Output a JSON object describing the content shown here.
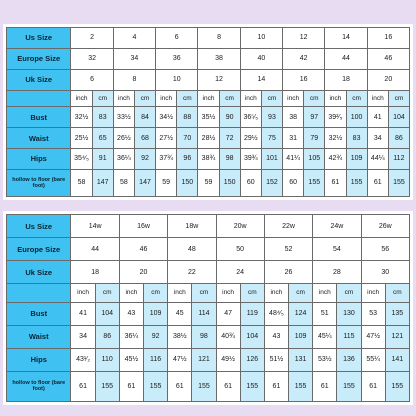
{
  "table_top": {
    "rows": [
      {
        "label": "Us Size",
        "cells": [
          "2",
          "4",
          "6",
          "8",
          "10",
          "12",
          "14",
          "16"
        ]
      },
      {
        "label": "Europe Size",
        "cells": [
          "32",
          "34",
          "36",
          "38",
          "40",
          "42",
          "44",
          "46"
        ]
      },
      {
        "label": "Uk Size",
        "cells": [
          "6",
          "8",
          "10",
          "12",
          "14",
          "16",
          "18",
          "20"
        ]
      }
    ],
    "units": [
      "inch",
      "cm"
    ],
    "measurements": [
      {
        "label": "Bust",
        "values": [
          [
            "32½",
            "83"
          ],
          [
            "33½",
            "84"
          ],
          [
            "34½",
            "88"
          ],
          [
            "35½",
            "90"
          ],
          [
            "36⁵⁄₅",
            "93"
          ],
          [
            "38",
            "97"
          ],
          [
            "39²⁄₅",
            "100"
          ],
          [
            "41",
            "104"
          ]
        ]
      },
      {
        "label": "Waist",
        "values": [
          [
            "25½",
            "65"
          ],
          [
            "26½",
            "68"
          ],
          [
            "27½",
            "70"
          ],
          [
            "28½",
            "72"
          ],
          [
            "29½",
            "75"
          ],
          [
            "31",
            "79"
          ],
          [
            "32½",
            "83"
          ],
          [
            "34",
            "86"
          ]
        ]
      },
      {
        "label": "Hips",
        "values": [
          [
            "35⁴⁄₅",
            "91"
          ],
          [
            "36¼",
            "92"
          ],
          [
            "37¾",
            "96"
          ],
          [
            "38¾",
            "98"
          ],
          [
            "39¾",
            "101"
          ],
          [
            "41¼",
            "105"
          ],
          [
            "42¾",
            "109"
          ],
          [
            "44¼",
            "112"
          ]
        ]
      },
      {
        "label": "hollow to floor (bare foot)",
        "values": [
          [
            "58",
            "147"
          ],
          [
            "58",
            "147"
          ],
          [
            "59",
            "150"
          ],
          [
            "59",
            "150"
          ],
          [
            "60",
            "152"
          ],
          [
            "60",
            "155"
          ],
          [
            "61",
            "155"
          ],
          [
            "61",
            "155"
          ]
        ]
      }
    ]
  },
  "table_bottom": {
    "rows": [
      {
        "label": "Us Size",
        "cells": [
          "14w",
          "16w",
          "18w",
          "20w",
          "22w",
          "24w",
          "26w"
        ]
      },
      {
        "label": "Europe Size",
        "cells": [
          "44",
          "46",
          "48",
          "50",
          "52",
          "54",
          "56"
        ]
      },
      {
        "label": "Uk Size",
        "cells": [
          "18",
          "20",
          "22",
          "24",
          "26",
          "28",
          "30"
        ]
      }
    ],
    "units": [
      "inch",
      "cm"
    ],
    "measurements": [
      {
        "label": "Bust",
        "values": [
          [
            "41",
            "104"
          ],
          [
            "43",
            "109"
          ],
          [
            "45",
            "114"
          ],
          [
            "47",
            "119"
          ],
          [
            "48⁴⁄₅",
            "124"
          ],
          [
            "51",
            "130"
          ],
          [
            "53",
            "135"
          ]
        ]
      },
      {
        "label": "Waist",
        "values": [
          [
            "34",
            "86"
          ],
          [
            "36¼",
            "92"
          ],
          [
            "38½",
            "98"
          ],
          [
            "40¾",
            "104"
          ],
          [
            "43",
            "109"
          ],
          [
            "45¼",
            "115"
          ],
          [
            "47½",
            "121"
          ]
        ]
      },
      {
        "label": "Hips",
        "values": [
          [
            "43¹⁄₂",
            "110"
          ],
          [
            "45½",
            "116"
          ],
          [
            "47½",
            "121"
          ],
          [
            "49½",
            "126"
          ],
          [
            "51½",
            "131"
          ],
          [
            "53½",
            "136"
          ],
          [
            "55¼",
            "141"
          ]
        ]
      },
      {
        "label": "hollow to floor (bare foot)",
        "values": [
          [
            "61",
            "155"
          ],
          [
            "61",
            "155"
          ],
          [
            "61",
            "155"
          ],
          [
            "61",
            "155"
          ],
          [
            "61",
            "155"
          ],
          [
            "61",
            "155"
          ],
          [
            "61",
            "155"
          ]
        ]
      }
    ]
  }
}
